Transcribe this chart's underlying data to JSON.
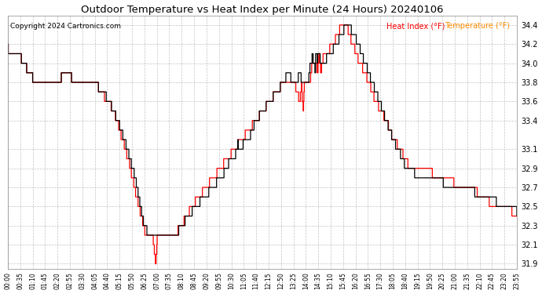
{
  "title": "Outdoor Temperature vs Heat Index per Minute (24 Hours) 20240106",
  "copyright": "Copyright 2024 Cartronics.com",
  "legend_heat_index": "Heat Index (°F)",
  "legend_temperature": "Temperature (°F)",
  "ylim": [
    31.85,
    34.5
  ],
  "yticks": [
    31.9,
    32.1,
    32.3,
    32.5,
    32.7,
    32.9,
    33.1,
    33.4,
    33.6,
    33.8,
    34.0,
    34.2,
    34.4
  ],
  "color_heat_index": "#ff0000",
  "color_temperature": "#000000",
  "background_color": "#ffffff",
  "grid_color": "#aaaaaa",
  "title_color": "#000000",
  "copyright_color": "#000000",
  "legend_hi_color": "#ff0000",
  "legend_temp_color": "#ff8c00",
  "xtick_labels": [
    "00:00",
    "00:35",
    "01:10",
    "01:45",
    "02:20",
    "02:55",
    "03:30",
    "04:05",
    "04:40",
    "05:15",
    "05:50",
    "06:25",
    "07:00",
    "07:35",
    "08:10",
    "08:45",
    "09:20",
    "09:55",
    "10:30",
    "11:05",
    "11:40",
    "12:15",
    "12:50",
    "13:25",
    "14:00",
    "14:35",
    "15:10",
    "15:45",
    "16:20",
    "16:55",
    "17:30",
    "18:05",
    "18:40",
    "19:15",
    "19:50",
    "20:25",
    "21:00",
    "21:35",
    "22:10",
    "22:45",
    "23:20",
    "23:55"
  ],
  "n_points": 1440
}
